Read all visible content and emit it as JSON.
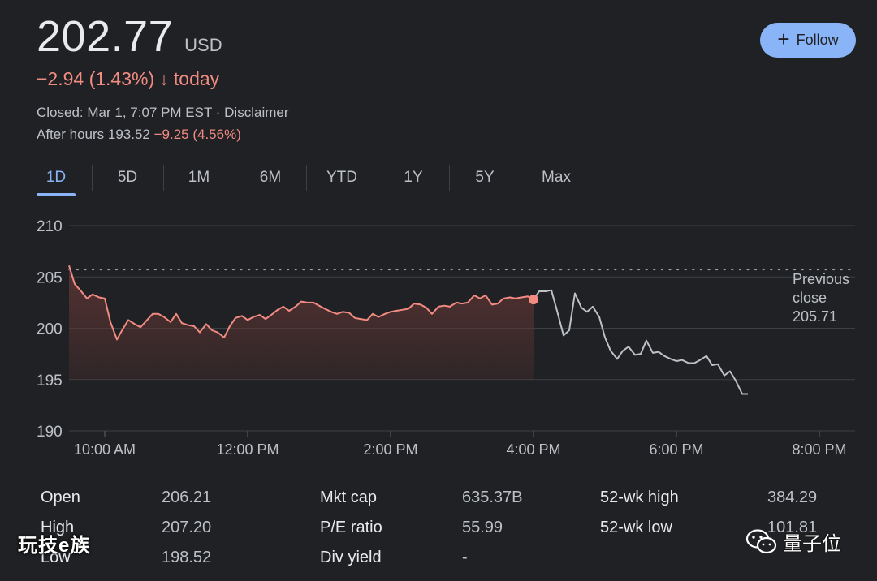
{
  "quote": {
    "price": "202.77",
    "currency": "USD",
    "change": "−2.94 (1.43%)",
    "change_arrow": "↓",
    "change_period": "today",
    "closed_text": "Closed: Mar 1, 7:07 PM EST · Disclaimer",
    "after_hours_label": "After hours 193.52",
    "after_hours_change": "−9.25 (4.56%)"
  },
  "follow_button": {
    "label": "Follow",
    "icon": "plus-icon"
  },
  "tabs": [
    {
      "label": "1D",
      "active": true
    },
    {
      "label": "5D"
    },
    {
      "label": "1M"
    },
    {
      "label": "6M"
    },
    {
      "label": "YTD"
    },
    {
      "label": "1Y"
    },
    {
      "label": "5Y"
    },
    {
      "label": "Max"
    }
  ],
  "chart_data": {
    "type": "line",
    "y_ticks": [
      "210",
      "205",
      "200",
      "195",
      "190"
    ],
    "x_ticks": [
      "10:00 AM",
      "12:00 PM",
      "2:00 PM",
      "4:00 PM",
      "6:00 PM",
      "8:00 PM"
    ],
    "ylim": [
      190,
      210
    ],
    "xlim_hours": [
      9.5,
      20.5
    ],
    "previous_close": {
      "label_lines": [
        "Previous",
        "close",
        "205.71"
      ],
      "value": 205.71
    },
    "grid": true,
    "colors": {
      "regular": "#f28b82",
      "after_hours": "#bdc1c6",
      "fill": "#5c3433"
    },
    "series": [
      {
        "segment": "regular",
        "x": [
          9.5,
          9.58,
          9.67,
          9.75,
          9.83,
          9.92,
          10.0,
          10.08,
          10.17,
          10.25,
          10.33,
          10.42,
          10.5,
          10.58,
          10.67,
          10.75,
          10.83,
          10.92,
          11.0,
          11.08,
          11.17,
          11.25,
          11.33,
          11.42,
          11.5,
          11.58,
          11.67,
          11.75,
          11.83,
          11.92,
          12.0,
          12.08,
          12.17,
          12.25,
          12.33,
          12.42,
          12.5,
          12.58,
          12.67,
          12.75,
          12.83,
          12.92,
          13.0,
          13.08,
          13.17,
          13.25,
          13.33,
          13.42,
          13.5,
          13.58,
          13.67,
          13.75,
          13.83,
          13.92,
          14.0,
          14.08,
          14.17,
          14.25,
          14.33,
          14.42,
          14.5,
          14.58,
          14.67,
          14.75,
          14.83,
          14.92,
          15.0,
          15.08,
          15.17,
          15.25,
          15.33,
          15.42,
          15.5,
          15.58,
          15.67,
          15.75,
          15.83,
          15.92,
          16.0
        ],
        "y": [
          206.1,
          204.3,
          203.6,
          202.9,
          203.3,
          203.0,
          202.9,
          200.6,
          198.9,
          199.9,
          200.8,
          200.4,
          200.1,
          200.7,
          201.4,
          201.4,
          201.1,
          200.6,
          201.4,
          200.5,
          200.3,
          200.2,
          199.6,
          200.4,
          199.8,
          199.6,
          199.1,
          200.2,
          201.0,
          201.2,
          200.8,
          201.1,
          201.3,
          200.9,
          201.3,
          201.8,
          202.1,
          201.7,
          202.1,
          202.6,
          202.5,
          202.5,
          202.2,
          201.9,
          201.6,
          201.4,
          201.6,
          201.5,
          201.0,
          200.9,
          200.8,
          201.4,
          201.1,
          201.4,
          201.6,
          201.7,
          201.8,
          201.9,
          202.4,
          202.3,
          202.0,
          201.4,
          202.1,
          202.2,
          202.1,
          202.5,
          202.4,
          202.5,
          203.2,
          202.9,
          203.2,
          202.3,
          202.4,
          202.9,
          203.0,
          202.9,
          203.0,
          203.1,
          202.8
        ]
      },
      {
        "segment": "after_hours",
        "x": [
          16.0,
          16.08,
          16.17,
          16.25,
          16.33,
          16.42,
          16.5,
          16.58,
          16.67,
          16.75,
          16.83,
          16.92,
          17.0,
          17.08,
          17.17,
          17.25,
          17.33,
          17.42,
          17.5,
          17.58,
          17.67,
          17.75,
          17.83,
          17.92,
          18.0,
          18.08,
          18.17,
          18.25,
          18.33,
          18.42,
          18.5,
          18.58,
          18.67,
          18.75,
          18.83,
          18.92,
          19.0,
          19.08,
          19.17,
          19.25
        ],
        "y": [
          202.8,
          203.6,
          203.6,
          203.7,
          201.7,
          199.3,
          199.8,
          203.4,
          202.0,
          201.6,
          202.1,
          201.1,
          199.1,
          197.8,
          197.0,
          197.8,
          198.2,
          197.4,
          197.5,
          198.8,
          197.6,
          197.7,
          197.3,
          197.0,
          196.8,
          196.9,
          196.6,
          196.6,
          196.9,
          197.3,
          196.4,
          196.5,
          195.4,
          195.8,
          194.9,
          193.6,
          193.6,
          193.6,
          193.6,
          193.6
        ]
      }
    ]
  },
  "stats": [
    {
      "label": "Open",
      "value": "206.21"
    },
    {
      "label": "High",
      "value": "207.20"
    },
    {
      "label": "Low",
      "value": "198.52"
    },
    {
      "label": "Mkt cap",
      "value": "635.37B"
    },
    {
      "label": "P/E ratio",
      "value": "55.99"
    },
    {
      "label": "Div yield",
      "value": "-"
    },
    {
      "label": "52-wk high",
      "value": "384.29"
    },
    {
      "label": "52-wk low",
      "value": "101.81"
    }
  ],
  "watermarks": {
    "left": "玩技e族",
    "right": "量子位",
    "right_icon": "wechat-icon"
  }
}
